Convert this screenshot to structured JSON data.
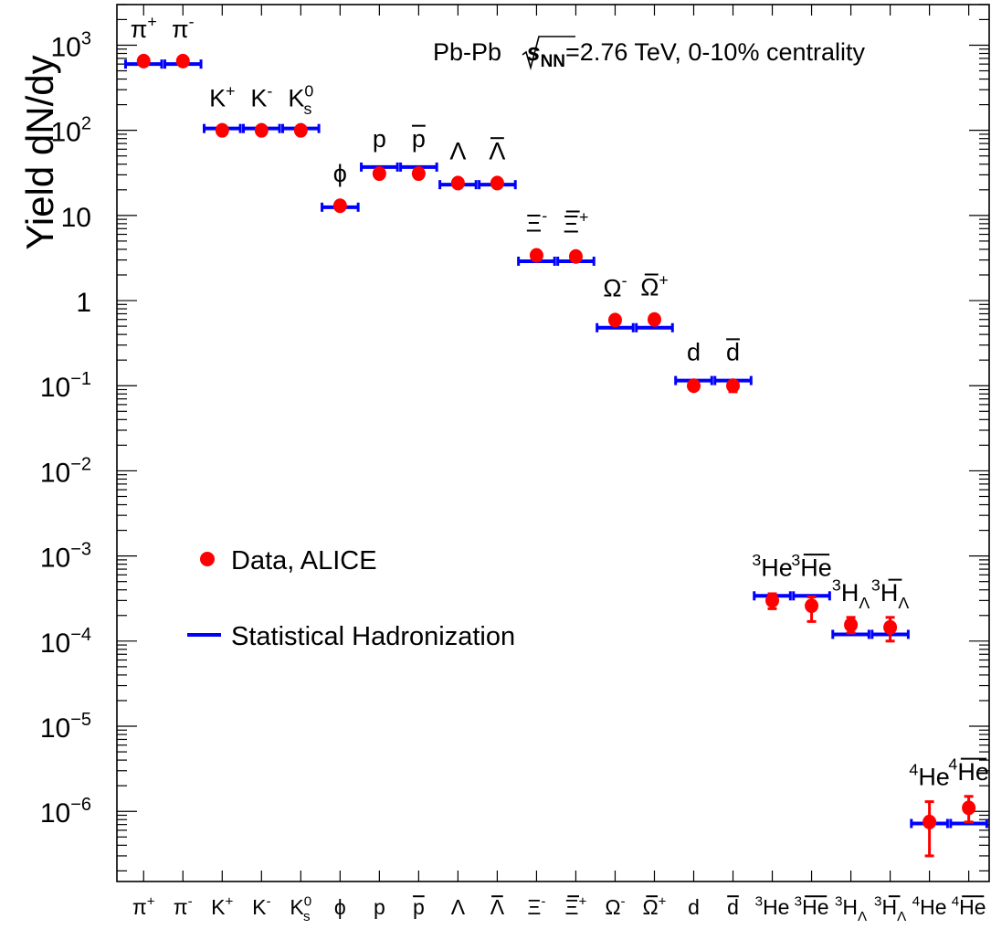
{
  "chart_data": {
    "type": "scatter",
    "ylabel": "Yield dN/dy",
    "yscale": "log",
    "ylim": [
      1.5e-07,
      3000
    ],
    "annotation": {
      "prefix": "Pb-Pb ",
      "sqrt_var": "s",
      "sqrt_sub": "NN",
      "suffix": "=2.76 TeV, 0-10% centrality"
    },
    "legend": {
      "placement": "left-middle",
      "data_label": "Data, ALICE",
      "model_label": "Statistical Hadronization"
    },
    "y_ticks": [
      {
        "value": 1000,
        "base": "10",
        "exp": "3"
      },
      {
        "value": 100,
        "base": "10",
        "exp": "2"
      },
      {
        "value": 10,
        "base": "10",
        "exp": ""
      },
      {
        "value": 1,
        "base": "1",
        "exp": ""
      },
      {
        "value": 0.1,
        "base": "10",
        "exp": "−1"
      },
      {
        "value": 0.01,
        "base": "10",
        "exp": "−2"
      },
      {
        "value": 0.001,
        "base": "10",
        "exp": "−3"
      },
      {
        "value": 0.0001,
        "base": "10",
        "exp": "−4"
      },
      {
        "value": 1e-05,
        "base": "10",
        "exp": "−5"
      },
      {
        "value": 1e-06,
        "base": "10",
        "exp": "−6"
      }
    ],
    "species": [
      {
        "pre": "",
        "main": "π",
        "sup": "+",
        "sub": "",
        "bar": false,
        "data": 650,
        "err_lo": 640,
        "err_hi": 660,
        "model": 600
      },
      {
        "pre": "",
        "main": "π",
        "sup": "-",
        "sub": "",
        "bar": false,
        "data": 650,
        "err_lo": 640,
        "err_hi": 660,
        "model": 600
      },
      {
        "pre": "",
        "main": "K",
        "sup": "+",
        "sub": "",
        "bar": false,
        "data": 100,
        "err_lo": 98,
        "err_hi": 102,
        "model": 105
      },
      {
        "pre": "",
        "main": "K",
        "sup": "-",
        "sub": "",
        "bar": false,
        "data": 100,
        "err_lo": 98,
        "err_hi": 102,
        "model": 105
      },
      {
        "pre": "",
        "main": "K",
        "sup": "0",
        "sub": "s",
        "bar": false,
        "data": 100,
        "err_lo": 98,
        "err_hi": 102,
        "model": 105
      },
      {
        "pre": "",
        "main": "ϕ",
        "sup": "",
        "sub": "",
        "bar": false,
        "data": 13,
        "err_lo": 12.5,
        "err_hi": 13.5,
        "model": 12.5
      },
      {
        "pre": "",
        "main": "p",
        "sup": "",
        "sub": "",
        "bar": false,
        "data": 31,
        "err_lo": 30,
        "err_hi": 32,
        "model": 37
      },
      {
        "pre": "",
        "main": "p",
        "sup": "",
        "sub": "",
        "bar": true,
        "data": 31,
        "err_lo": 30,
        "err_hi": 32,
        "model": 37
      },
      {
        "pre": "",
        "main": "Λ",
        "sup": "",
        "sub": "",
        "bar": false,
        "data": 24,
        "err_lo": 23,
        "err_hi": 25,
        "model": 23
      },
      {
        "pre": "",
        "main": "Λ",
        "sup": "",
        "sub": "",
        "bar": true,
        "data": 24,
        "err_lo": 23,
        "err_hi": 25,
        "model": 23
      },
      {
        "pre": "",
        "main": "Ξ",
        "sup": "-",
        "sub": "",
        "bar": false,
        "data": 3.4,
        "err_lo": 3.3,
        "err_hi": 3.5,
        "model": 2.9
      },
      {
        "pre": "",
        "main": "Ξ",
        "sup": "+",
        "sub": "",
        "bar": true,
        "data": 3.3,
        "err_lo": 3.2,
        "err_hi": 3.4,
        "model": 2.9
      },
      {
        "pre": "",
        "main": "Ω",
        "sup": "-",
        "sub": "",
        "bar": false,
        "data": 0.59,
        "err_lo": 0.57,
        "err_hi": 0.61,
        "model": 0.48
      },
      {
        "pre": "",
        "main": "Ω",
        "sup": "+",
        "sub": "",
        "bar": true,
        "data": 0.6,
        "err_lo": 0.58,
        "err_hi": 0.62,
        "model": 0.48
      },
      {
        "pre": "",
        "main": "d",
        "sup": "",
        "sub": "",
        "bar": false,
        "data": 0.1,
        "err_lo": 0.095,
        "err_hi": 0.105,
        "model": 0.115
      },
      {
        "pre": "",
        "main": "d",
        "sup": "",
        "sub": "",
        "bar": true,
        "data": 0.1,
        "err_lo": 0.085,
        "err_hi": 0.11,
        "model": 0.115
      },
      {
        "pre": "3",
        "main": "He",
        "sup": "",
        "sub": "",
        "bar": false,
        "data": 0.0003,
        "err_lo": 0.00024,
        "err_hi": 0.00036,
        "model": 0.00034
      },
      {
        "pre": "3",
        "main": "He",
        "sup": "",
        "sub": "",
        "bar": true,
        "data": 0.00026,
        "err_lo": 0.00017,
        "err_hi": 0.00033,
        "model": 0.00034
      },
      {
        "pre": "3",
        "main": "H",
        "sup": "",
        "sub": "Λ",
        "bar": false,
        "data": 0.000155,
        "err_lo": 0.000125,
        "err_hi": 0.00019,
        "model": 0.00012
      },
      {
        "pre": "3",
        "main": "H",
        "sup": "",
        "sub": "Λ",
        "bar": true,
        "data": 0.000145,
        "err_lo": 0.0001,
        "err_hi": 0.00019,
        "model": 0.00012
      },
      {
        "pre": "4",
        "main": "He",
        "sup": "",
        "sub": "",
        "bar": false,
        "data": 7.5e-07,
        "err_lo": 3e-07,
        "err_hi": 1.3e-06,
        "model": 7.2e-07
      },
      {
        "pre": "4",
        "main": "He",
        "sup": "",
        "sub": "",
        "bar": true,
        "data": 1.1e-06,
        "err_lo": 7.5e-07,
        "err_hi": 1.5e-06,
        "model": 7.2e-07
      }
    ],
    "colors": {
      "data": "#ff0000",
      "model": "#0000ff",
      "axis": "#000000"
    }
  }
}
